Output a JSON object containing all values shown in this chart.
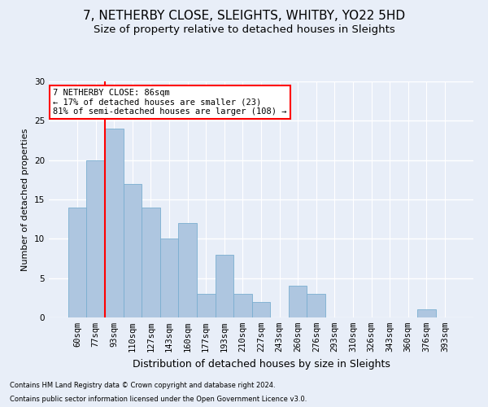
{
  "title": "7, NETHERBY CLOSE, SLEIGHTS, WHITBY, YO22 5HD",
  "subtitle": "Size of property relative to detached houses in Sleights",
  "xlabel": "Distribution of detached houses by size in Sleights",
  "ylabel": "Number of detached properties",
  "footer_line1": "Contains HM Land Registry data © Crown copyright and database right 2024.",
  "footer_line2": "Contains public sector information licensed under the Open Government Licence v3.0.",
  "categories": [
    "60sqm",
    "77sqm",
    "93sqm",
    "110sqm",
    "127sqm",
    "143sqm",
    "160sqm",
    "177sqm",
    "193sqm",
    "210sqm",
    "227sqm",
    "243sqm",
    "260sqm",
    "276sqm",
    "293sqm",
    "310sqm",
    "326sqm",
    "343sqm",
    "360sqm",
    "376sqm",
    "393sqm"
  ],
  "values": [
    14,
    20,
    24,
    17,
    14,
    10,
    12,
    3,
    8,
    3,
    2,
    0,
    4,
    3,
    0,
    0,
    0,
    0,
    0,
    1,
    0
  ],
  "bar_color": "#aec6e0",
  "bar_edge_color": "#7aaed0",
  "annotation_text": "7 NETHERBY CLOSE: 86sqm\n← 17% of detached houses are smaller (23)\n81% of semi-detached houses are larger (108) →",
  "annotation_box_color": "white",
  "annotation_box_edge": "red",
  "marker_color": "red",
  "ylim": [
    0,
    30
  ],
  "yticks": [
    0,
    5,
    10,
    15,
    20,
    25,
    30
  ],
  "bg_color": "#e8eef8",
  "plot_bg_color": "#e8eef8",
  "grid_color": "white",
  "title_fontsize": 11,
  "subtitle_fontsize": 9.5,
  "xlabel_fontsize": 9,
  "ylabel_fontsize": 8,
  "tick_fontsize": 7.5,
  "footer_fontsize": 6,
  "annot_fontsize": 7.5
}
